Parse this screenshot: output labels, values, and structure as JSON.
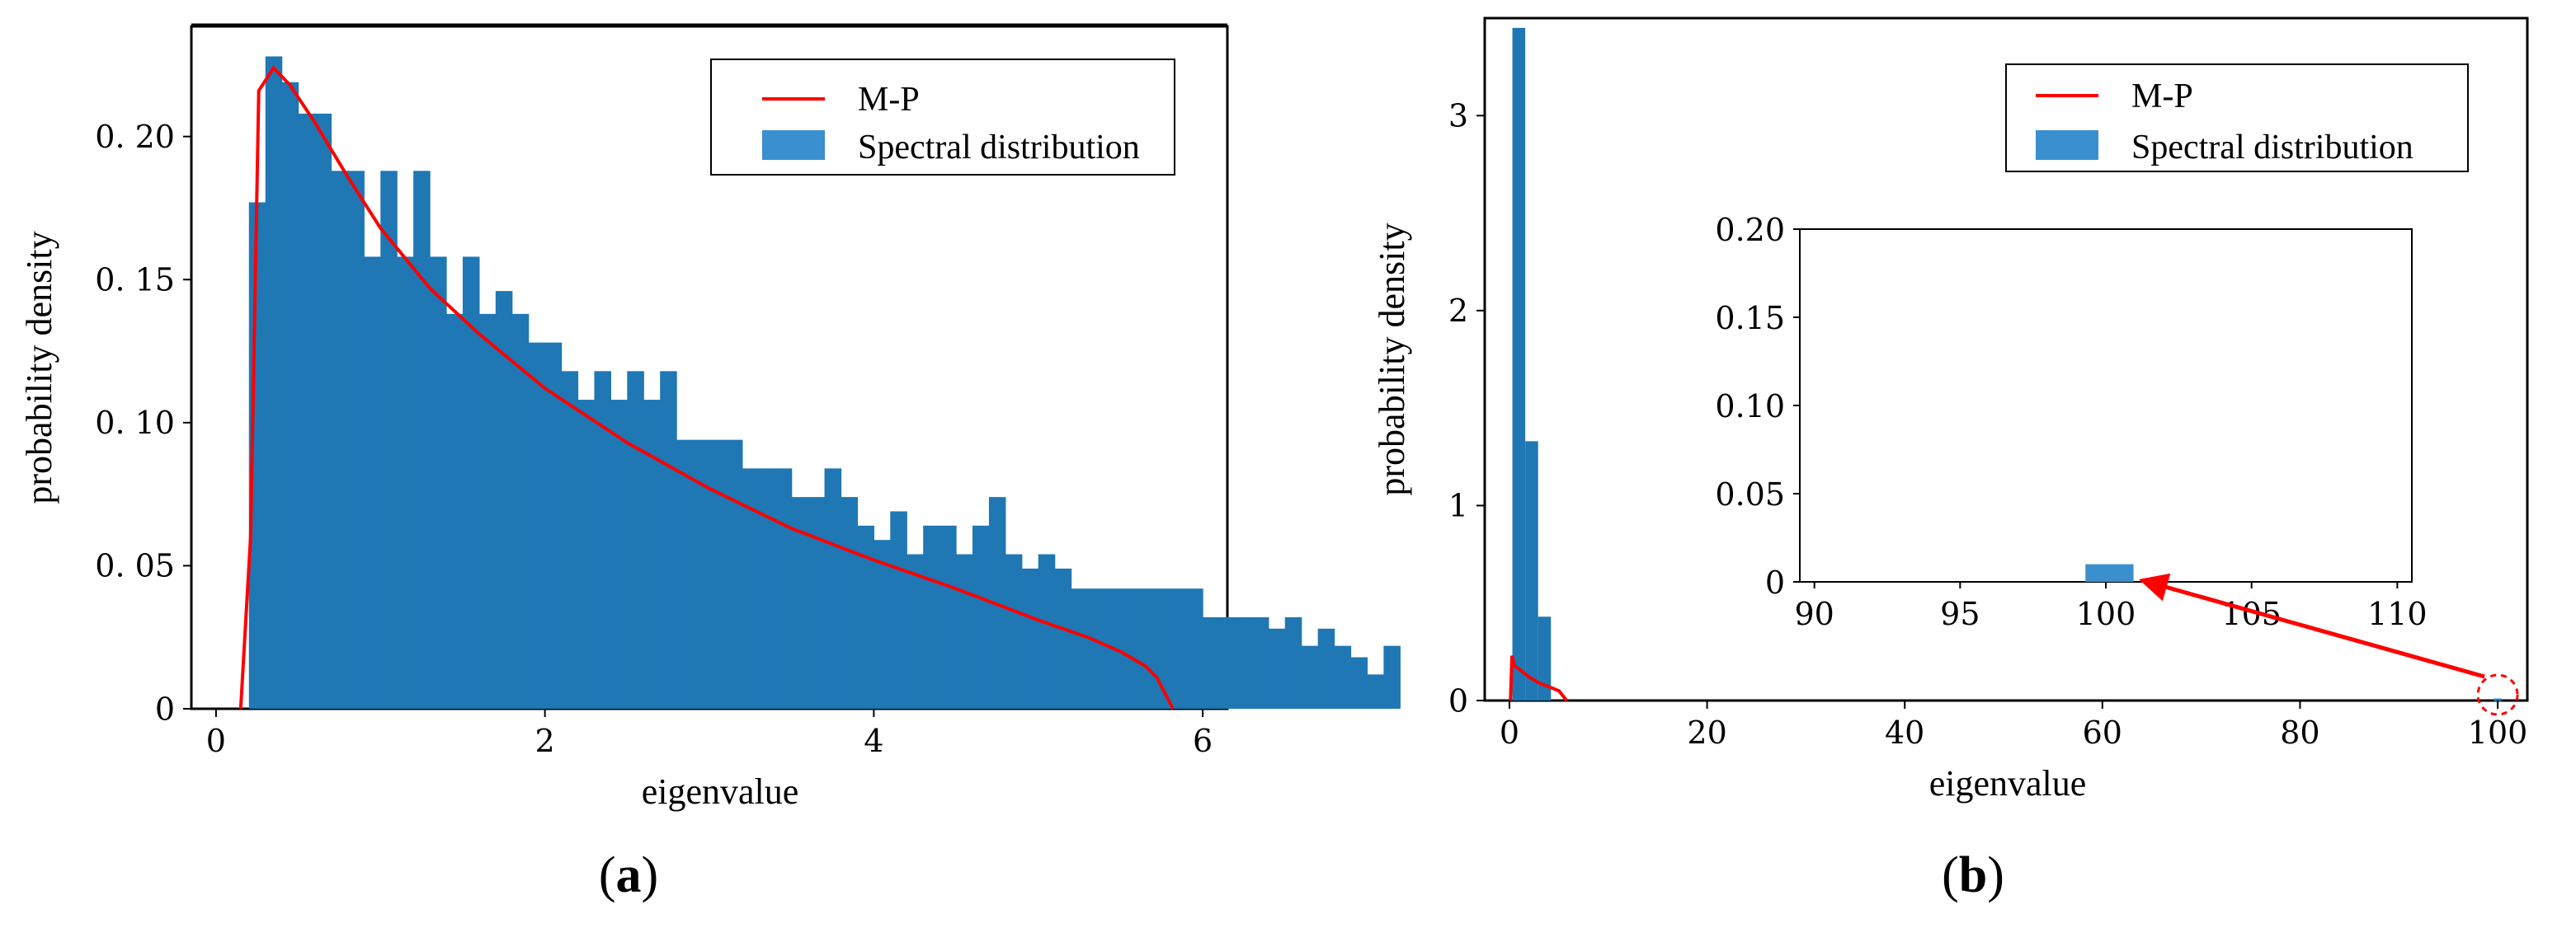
{
  "colors": {
    "bar": "#1f77b4",
    "legend_patch": "#3a8fcf",
    "mp_line": "#ff0000",
    "axis": "#000000"
  },
  "chart_data": [
    {
      "id": "a",
      "type": "bar",
      "caption": {
        "open": "(",
        "letter": "a",
        "close": ")"
      },
      "xlabel": "eigenvalue",
      "ylabel": "probability density",
      "xlim": [
        -0.15,
        6.15
      ],
      "ylim": [
        0,
        0.2385
      ],
      "xticks": [
        0,
        2,
        4,
        6
      ],
      "xtick_labels": [
        "0",
        "2",
        "4",
        "6"
      ],
      "yticks": [
        0,
        0.05,
        0.1,
        0.15,
        0.2
      ],
      "ytick_labels": [
        "0",
        "0. 05",
        "0. 10",
        "0. 15",
        "0. 20"
      ],
      "bin_width": 0.1,
      "bin_start": 0.2,
      "values": [
        0.177,
        0.228,
        0.219,
        0.208,
        0.208,
        0.188,
        0.188,
        0.158,
        0.188,
        0.158,
        0.188,
        0.158,
        0.138,
        0.158,
        0.138,
        0.146,
        0.138,
        0.128,
        0.128,
        0.118,
        0.108,
        0.118,
        0.108,
        0.118,
        0.108,
        0.118,
        0.094,
        0.094,
        0.094,
        0.094,
        0.084,
        0.084,
        0.084,
        0.074,
        0.074,
        0.084,
        0.074,
        0.064,
        0.059,
        0.069,
        0.054,
        0.064,
        0.064,
        0.054,
        0.064,
        0.074,
        0.054,
        0.049,
        0.054,
        0.049,
        0.042,
        0.042,
        0.042,
        0.042,
        0.042,
        0.042,
        0.042,
        0.042,
        0.032,
        0.032,
        0.032,
        0.032,
        0.028,
        0.032,
        0.022,
        0.028,
        0.022,
        0.018,
        0.012,
        0.022
      ],
      "series": [
        {
          "name": "M-P",
          "type": "line",
          "x": [
            0.15,
            0.21,
            0.26,
            0.35,
            0.45,
            0.6,
            0.8,
            1.0,
            1.3,
            1.6,
            2.0,
            2.5,
            3.0,
            3.5,
            4.0,
            4.5,
            5.0,
            5.3,
            5.5,
            5.65,
            5.72,
            5.82
          ],
          "y": [
            0.0,
            0.06,
            0.216,
            0.224,
            0.218,
            0.205,
            0.186,
            0.168,
            0.147,
            0.131,
            0.112,
            0.093,
            0.077,
            0.063,
            0.052,
            0.042,
            0.031,
            0.025,
            0.02,
            0.015,
            0.011,
            0.0
          ]
        },
        {
          "name": "Spectral distribution",
          "type": "bar"
        }
      ],
      "legend": {
        "placement": "top-right",
        "entries": [
          "M-P",
          "Spectral distribution"
        ]
      }
    },
    {
      "id": "b",
      "type": "bar",
      "caption": {
        "open": "(",
        "letter": "b",
        "close": ")"
      },
      "xlabel": "eigenvalue",
      "ylabel": "probability density",
      "xlim": [
        -2.5,
        103
      ],
      "ylim": [
        0,
        3.5
      ],
      "xticks": [
        0,
        20,
        40,
        60,
        80,
        100
      ],
      "xtick_labels": [
        "0",
        "20",
        "40",
        "60",
        "80",
        "100"
      ],
      "yticks": [
        0,
        1,
        2,
        3
      ],
      "ytick_labels": [
        "0",
        "1",
        "2",
        "3"
      ],
      "bars": [
        {
          "x0": 0.3,
          "x1": 1.6,
          "value": 3.45
        },
        {
          "x0": 1.6,
          "x1": 2.9,
          "value": 1.33
        },
        {
          "x0": 2.9,
          "x1": 4.2,
          "value": 0.43
        },
        {
          "x0": 99.6,
          "x1": 100.4,
          "value": 0.01
        }
      ],
      "series": [
        {
          "name": "M-P",
          "type": "line",
          "x": [
            0.1,
            0.26,
            0.5,
            1.0,
            2.0,
            3.0,
            4.0,
            5.0,
            5.8
          ],
          "y": [
            0.0,
            0.23,
            0.18,
            0.16,
            0.12,
            0.09,
            0.07,
            0.05,
            0.0
          ]
        },
        {
          "name": "Spectral distribution",
          "type": "bar"
        }
      ],
      "legend": {
        "placement": "top-right",
        "entries": [
          "M-P",
          "Spectral distribution"
        ]
      },
      "inset": {
        "xlim": [
          89.5,
          110.5
        ],
        "ylim": [
          0,
          0.2
        ],
        "xticks": [
          90,
          95,
          100,
          105,
          110
        ],
        "xtick_labels": [
          "90",
          "95",
          "100",
          "105",
          "110"
        ],
        "yticks": [
          0,
          0.05,
          0.1,
          0.15,
          0.2
        ],
        "ytick_labels": [
          "0",
          "0.05",
          "0.10",
          "0.15",
          "0.20"
        ],
        "bars": [
          {
            "x0": 99.3,
            "x1": 100.95,
            "value": 0.01
          }
        ],
        "arrow_from": {
          "x": 100,
          "y": 0.0
        },
        "arrow_to_inset": {
          "x": 101.0,
          "y": 0.0
        }
      }
    }
  ]
}
